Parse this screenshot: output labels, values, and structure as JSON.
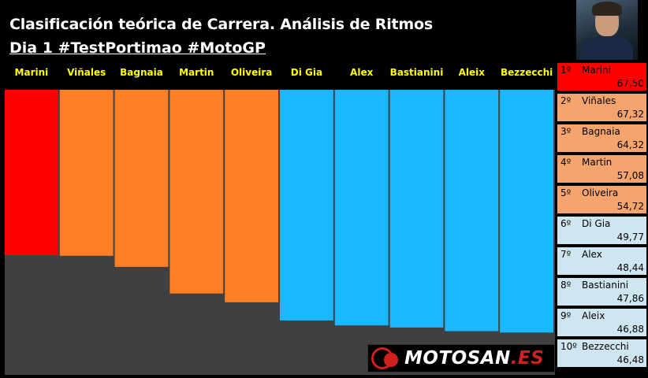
{
  "header": {
    "title": "Clasificación teórica de Carrera. Análisis de Ritmos",
    "subtitle": "Dia 1 #TestPortimao #MotoGP"
  },
  "colors": {
    "red": "#ff0000",
    "orange": "#ff8024",
    "cyan": "#1ab9ff",
    "floor": "#404040",
    "label_yellow": "#ffff00",
    "panel_red": "#ff0000",
    "panel_orange": "#f5a46e",
    "panel_blue": "#cfe6f0"
  },
  "chart_data": {
    "type": "bar",
    "categories": [
      "Marini",
      "Viñales",
      "Bagnaia",
      "Martin",
      "Oliveira",
      "Di Gia",
      "Alex",
      "Bastianini",
      "Aleix",
      "Bezzecchi"
    ],
    "series": [
      {
        "values": [
          67.5,
          67.32,
          64.32,
          57.08,
          54.72,
          49.77,
          48.44,
          47.86,
          46.88,
          46.48
        ]
      }
    ],
    "bar_colors": [
      "#ff0000",
      "#ff8024",
      "#ff8024",
      "#ff8024",
      "#ff8024",
      "#1ab9ff",
      "#1ab9ff",
      "#1ab9ff",
      "#1ab9ff",
      "#1ab9ff"
    ],
    "ylim": [
      0,
      67.5
    ],
    "grid": false,
    "legend": "none"
  },
  "ranking": [
    {
      "pos": "1º",
      "name": "Marini",
      "value": "67,50",
      "color": "#ff0000"
    },
    {
      "pos": "2º",
      "name": "Viñales",
      "value": "67,32",
      "color": "#f5a46e"
    },
    {
      "pos": "3º",
      "name": "Bagnaia",
      "value": "64,32",
      "color": "#f5a46e"
    },
    {
      "pos": "4º",
      "name": "Martin",
      "value": "57,08",
      "color": "#f5a46e"
    },
    {
      "pos": "5º",
      "name": "Oliveira",
      "value": "54,72",
      "color": "#f5a46e"
    },
    {
      "pos": "6º",
      "name": "Di Gia",
      "value": "49,77",
      "color": "#cfe6f0"
    },
    {
      "pos": "7º",
      "name": "Alex",
      "value": "48,44",
      "color": "#cfe6f0"
    },
    {
      "pos": "8º",
      "name": "Bastianini",
      "value": "47,86",
      "color": "#cfe6f0"
    },
    {
      "pos": "9º",
      "name": "Aleix",
      "value": "46,88",
      "color": "#cfe6f0"
    },
    {
      "pos": "10º",
      "name": "Bezzecchi",
      "value": "46,48",
      "color": "#cfe6f0"
    }
  ],
  "logo": {
    "text_main": "MOTOSAN",
    "text_suffix": ".ES"
  }
}
